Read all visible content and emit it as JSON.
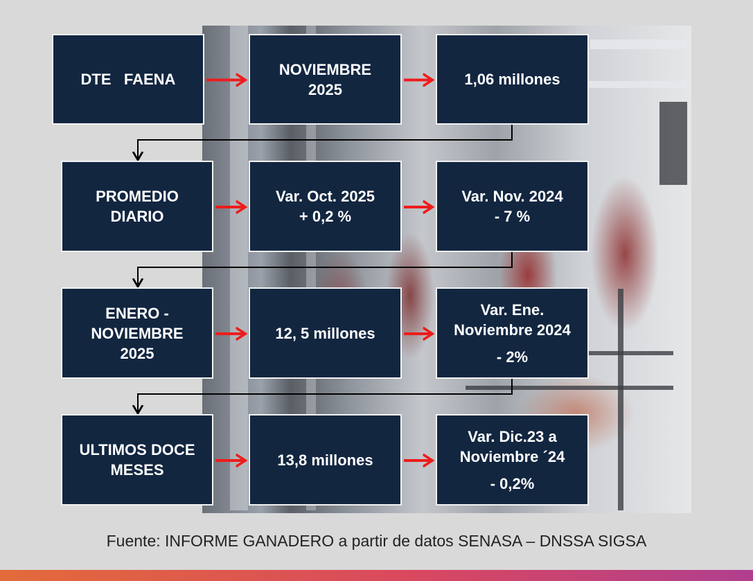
{
  "rows": [
    {
      "label": [
        "DTE   FAENA"
      ],
      "middle": [
        "NOVIEMBRE",
        "2025"
      ],
      "right": [
        "1,06 millones"
      ]
    },
    {
      "label": [
        "PROMEDIO",
        "DIARIO"
      ],
      "middle": [
        "Var. Oct. 2025",
        "+ 0,2 %"
      ],
      "right": [
        "Var. Nov. 2024",
        "- 7 %"
      ]
    },
    {
      "label": [
        "ENERO -",
        "NOVIEMBRE",
        "2025"
      ],
      "middle": [
        "12, 5 millones"
      ],
      "right": [
        "Var. Ene.",
        "Noviembre 2024",
        "- 2%"
      ]
    },
    {
      "label": [
        "ULTIMOS DOCE",
        "MESES"
      ],
      "middle": [
        "13,8 millones"
      ],
      "right": [
        "Var. Dic.23 a",
        "Noviembre ´24",
        "- 0,2%"
      ]
    }
  ],
  "footer": "Fuente: INFORME GANADERO a partir de datos SENASA – DNSSA SIGSA",
  "colors": {
    "box_fill": "#122640",
    "box_border": "#f2f2f2",
    "arrow": "#ee1c1c",
    "connector": "#000000",
    "background": "#d9d9d9"
  }
}
